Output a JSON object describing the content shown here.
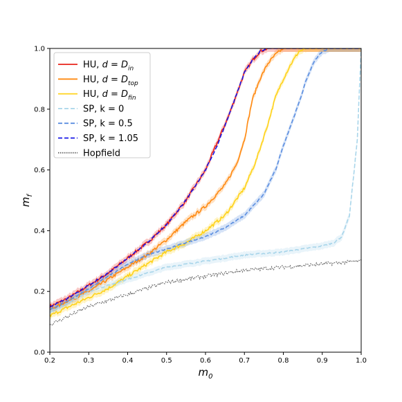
{
  "chart_data": {
    "type": "line",
    "xlabel": "m0",
    "ylabel": "mf",
    "xlim": [
      0.2,
      1.0
    ],
    "ylim": [
      0.0,
      1.0
    ],
    "xticks": [
      "0.2",
      "0.3",
      "0.4",
      "0.5",
      "0.6",
      "0.7",
      "0.8",
      "0.9",
      "1.0"
    ],
    "yticks": [
      "0.0",
      "0.2",
      "0.4",
      "0.6",
      "0.8",
      "1.0"
    ],
    "grid": false,
    "legend_position": "top-left",
    "series": [
      {
        "name": "HU, d = D_in",
        "label_main": "HU, ",
        "label_italic": "d",
        "label_rest": " = ",
        "label_sub_base": "D",
        "label_sub": "in",
        "color": "#e8231a",
        "style": "solid",
        "band": true,
        "x": [
          0.2,
          0.25,
          0.3,
          0.35,
          0.4,
          0.45,
          0.5,
          0.55,
          0.6,
          0.63,
          0.66,
          0.68,
          0.7,
          0.72,
          0.74,
          0.76,
          0.8,
          0.9,
          1.0
        ],
        "y": [
          0.15,
          0.18,
          0.22,
          0.26,
          0.31,
          0.36,
          0.42,
          0.5,
          0.6,
          0.69,
          0.78,
          0.85,
          0.92,
          0.96,
          0.99,
          1.0,
          1.0,
          1.0,
          1.0
        ]
      },
      {
        "name": "HU, d = D_top",
        "label_main": "HU, ",
        "label_italic": "d",
        "label_rest": " = ",
        "label_sub_base": "D",
        "label_sub": "top",
        "color": "#ff8a12",
        "style": "solid",
        "band": true,
        "x": [
          0.2,
          0.25,
          0.3,
          0.35,
          0.4,
          0.45,
          0.5,
          0.55,
          0.6,
          0.65,
          0.68,
          0.7,
          0.72,
          0.74,
          0.76,
          0.78,
          0.8,
          0.9,
          1.0
        ],
        "y": [
          0.14,
          0.17,
          0.2,
          0.24,
          0.28,
          0.32,
          0.37,
          0.43,
          0.48,
          0.55,
          0.62,
          0.7,
          0.83,
          0.9,
          0.95,
          0.98,
          1.0,
          1.0,
          1.0
        ]
      },
      {
        "name": "HU, d = D_fin",
        "label_main": "HU, ",
        "label_italic": "d",
        "label_rest": " = ",
        "label_sub_base": "D",
        "label_sub": "fin",
        "color": "#ffd21a",
        "style": "solid",
        "band": true,
        "x": [
          0.2,
          0.25,
          0.3,
          0.35,
          0.4,
          0.45,
          0.5,
          0.55,
          0.6,
          0.65,
          0.7,
          0.73,
          0.76,
          0.78,
          0.8,
          0.82,
          0.84,
          0.86,
          0.9,
          1.0
        ],
        "y": [
          0.12,
          0.15,
          0.18,
          0.21,
          0.25,
          0.29,
          0.33,
          0.36,
          0.4,
          0.45,
          0.54,
          0.63,
          0.75,
          0.84,
          0.9,
          0.95,
          0.99,
          1.0,
          1.0,
          1.0
        ]
      },
      {
        "name": "SP, k = 0",
        "label_main": "SP, k = 0",
        "color": "#a8d5ea",
        "style": "dashed",
        "band": true,
        "x": [
          0.2,
          0.3,
          0.4,
          0.5,
          0.6,
          0.7,
          0.8,
          0.9,
          0.93,
          0.95,
          0.97,
          0.99,
          1.0
        ],
        "y": [
          0.13,
          0.2,
          0.24,
          0.28,
          0.3,
          0.32,
          0.33,
          0.35,
          0.36,
          0.38,
          0.45,
          0.7,
          1.0
        ]
      },
      {
        "name": "SP, k = 0.5",
        "label_main": "SP, k = 0.5",
        "color": "#5b8ee0",
        "style": "dashed",
        "band": true,
        "x": [
          0.2,
          0.25,
          0.3,
          0.35,
          0.4,
          0.45,
          0.5,
          0.55,
          0.6,
          0.65,
          0.7,
          0.75,
          0.78,
          0.8,
          0.82,
          0.84,
          0.86,
          0.88,
          0.9,
          0.92,
          1.0
        ],
        "y": [
          0.14,
          0.17,
          0.21,
          0.25,
          0.29,
          0.32,
          0.34,
          0.36,
          0.38,
          0.41,
          0.45,
          0.52,
          0.6,
          0.68,
          0.75,
          0.82,
          0.9,
          0.96,
          0.99,
          1.0,
          1.0
        ]
      },
      {
        "name": "SP, k = 1.05",
        "label_main": "SP, k = 1.05",
        "color": "#1616e6",
        "style": "dashed",
        "band": false,
        "x": [
          0.2,
          0.25,
          0.3,
          0.35,
          0.4,
          0.45,
          0.5,
          0.55,
          0.6,
          0.63,
          0.66,
          0.68,
          0.7,
          0.72,
          0.74,
          0.76,
          0.8,
          0.9,
          1.0
        ],
        "y": [
          0.15,
          0.18,
          0.22,
          0.26,
          0.31,
          0.36,
          0.42,
          0.5,
          0.6,
          0.68,
          0.78,
          0.85,
          0.92,
          0.96,
          0.99,
          1.0,
          1.0,
          1.0,
          1.0
        ]
      },
      {
        "name": "Hopfield",
        "label_main": "Hopfield",
        "color": "#666666",
        "style": "dotted",
        "band": false,
        "x": [
          0.2,
          0.3,
          0.4,
          0.5,
          0.6,
          0.7,
          0.8,
          0.9,
          1.0
        ],
        "y": [
          0.09,
          0.15,
          0.19,
          0.23,
          0.25,
          0.27,
          0.28,
          0.29,
          0.3
        ]
      }
    ]
  }
}
